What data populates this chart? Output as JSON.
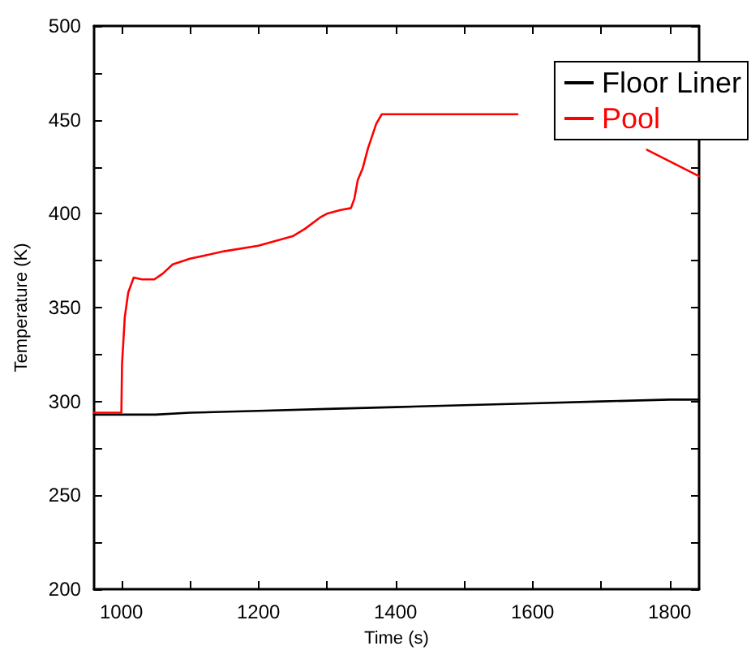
{
  "chart_data": {
    "type": "line",
    "xlabel": "Time (s)",
    "ylabel": "Temperature (K)",
    "xlim": [
      960,
      1843
    ],
    "ylim": [
      200,
      500
    ],
    "xticks": [
      {
        "value": 1000,
        "label": "1000"
      },
      {
        "value": 1100,
        "label": null
      },
      {
        "value": 1200,
        "label": "1200"
      },
      {
        "value": 1300,
        "label": null
      },
      {
        "value": 1400,
        "label": "1400"
      },
      {
        "value": 1500,
        "label": null
      },
      {
        "value": 1600,
        "label": "1600"
      },
      {
        "value": 1700,
        "label": null
      },
      {
        "value": 1800,
        "label": "1800"
      }
    ],
    "yticks": [
      200,
      {
        "value": 225,
        "label": null
      },
      250,
      {
        "value": 275,
        "label": null
      },
      300,
      {
        "value": 325,
        "label": null
      },
      350,
      {
        "value": 375,
        "label": null
      },
      400,
      {
        "value": 425,
        "label": null
      },
      450,
      {
        "value": 475,
        "label": null
      },
      500
    ],
    "grid": false,
    "legend": "top right",
    "marker": "none",
    "line_style": "solid",
    "series": [
      {
        "name": "Floor Liner",
        "color": "#000000",
        "x": [
          960,
          1050,
          1100,
          1200,
          1300,
          1400,
          1500,
          1600,
          1700,
          1800,
          1843
        ],
        "values": [
          293,
          293,
          294,
          295,
          296,
          297,
          298,
          299,
          300,
          301,
          301
        ]
      },
      {
        "name": "Pool",
        "color": "#ff0000",
        "x": [
          960,
          1000,
          1001,
          1005,
          1010,
          1018,
          1030,
          1048,
          1060,
          1075,
          1100,
          1150,
          1200,
          1250,
          1268,
          1290,
          1300,
          1320,
          1335,
          1340,
          1345,
          1352,
          1360,
          1372,
          1380,
          1450,
          1578,
          1579,
          1767,
          1843
        ],
        "values": [
          294,
          294,
          320,
          345,
          358,
          366,
          365,
          365,
          368,
          373,
          376,
          380,
          383,
          388,
          392,
          398,
          400,
          402,
          403,
          408,
          418,
          424,
          435,
          448,
          453,
          453,
          453,
          null,
          434,
          420
        ]
      }
    ]
  }
}
